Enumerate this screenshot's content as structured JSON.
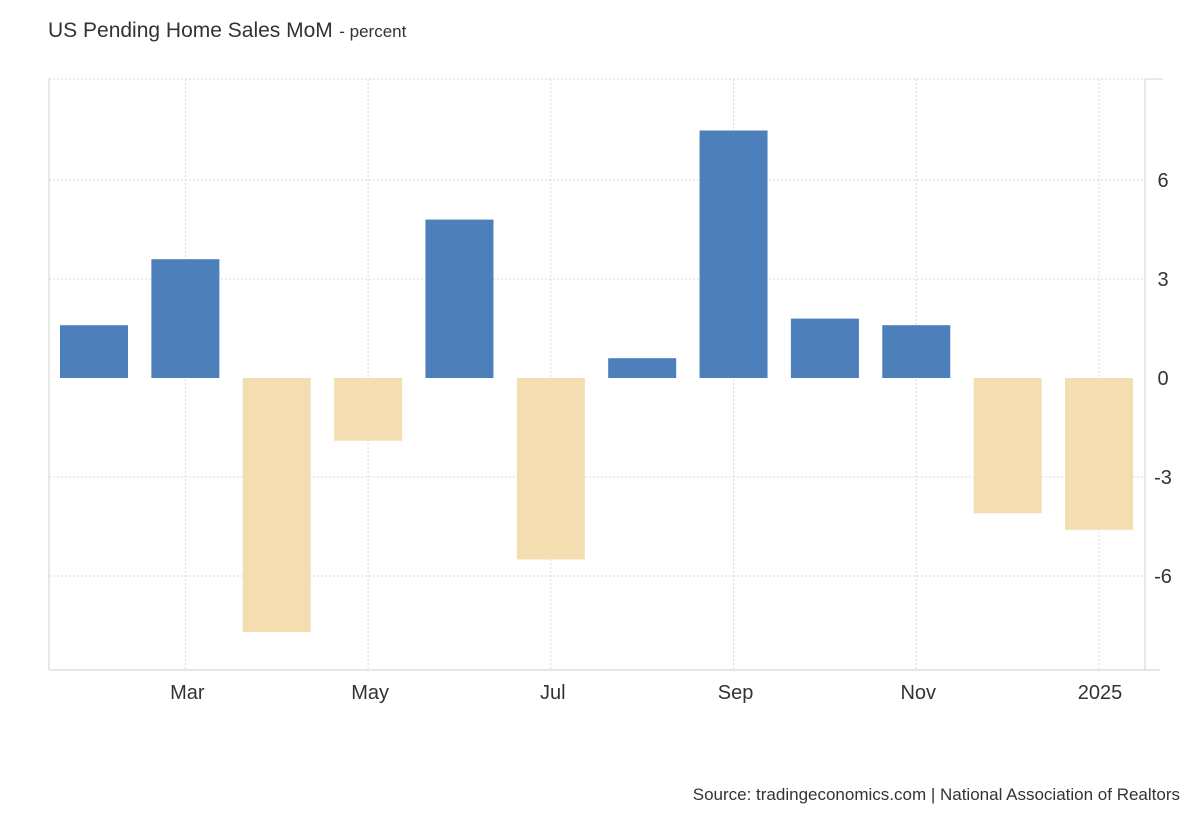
{
  "chart_data": {
    "type": "bar",
    "title": "US Pending Home Sales MoM",
    "subtitle": "- percent",
    "categories": [
      "2024-02",
      "2024-03",
      "2024-04",
      "2024-05",
      "2024-06",
      "2024-07",
      "2024-08",
      "2024-09",
      "2024-10",
      "2024-11",
      "2024-12",
      "2025-01"
    ],
    "values": [
      1.6,
      3.6,
      -7.7,
      -1.9,
      4.8,
      -5.5,
      0.6,
      7.5,
      1.8,
      1.6,
      -4.1,
      -4.6
    ],
    "x_tick_labels": [
      {
        "category": "2024-03",
        "label": "Mar"
      },
      {
        "category": "2024-05",
        "label": "May"
      },
      {
        "category": "2024-07",
        "label": "Jul"
      },
      {
        "category": "2024-09",
        "label": "Sep"
      },
      {
        "category": "2024-11",
        "label": "Nov"
      },
      {
        "category": "2025-01",
        "label": "2025"
      }
    ],
    "y_ticks": [
      6,
      3,
      0,
      -3,
      -6
    ],
    "y_tick_labels": [
      "6",
      "3",
      "0",
      "-3",
      "-6"
    ],
    "ylim": [
      -9,
      9
    ],
    "y_axis_side": "right",
    "grid": true,
    "positive_color": "#4d7fbb",
    "negative_color": "#f5ddb2",
    "xlabel": "",
    "ylabel": ""
  },
  "source_text": "Source: tradingeconomics.com | National Association of Realtors"
}
